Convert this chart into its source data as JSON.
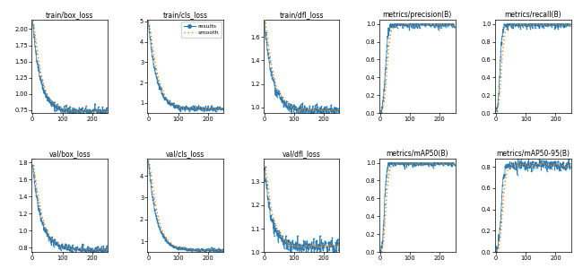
{
  "titles": [
    [
      "train/box_loss",
      "train/cls_loss",
      "train/dfl_loss",
      "metrics/precision(B)",
      "metrics/recall(B)"
    ],
    [
      "val/box_loss",
      "val/cls_loss",
      "val/dfl_loss",
      "metrics/mAP50(B)",
      "metrics/mAP50-95(B)"
    ]
  ],
  "n_epochs": 250,
  "line_color": "#1f77b4",
  "smooth_color": "#ff7f0e",
  "ylims": {
    "train/box_loss": [
      0.7,
      2.15
    ],
    "train/cls_loss": [
      0.5,
      5.1
    ],
    "train/dfl_loss": [
      0.95,
      1.75
    ],
    "metrics/precision(B)": [
      0.0,
      1.05
    ],
    "metrics/recall(B)": [
      0.0,
      1.05
    ],
    "val/box_loss": [
      0.75,
      1.85
    ],
    "val/cls_loss": [
      0.5,
      4.8
    ],
    "val/dfl_loss": [
      1.0,
      1.4
    ],
    "metrics/mAP50(B)": [
      0.0,
      1.05
    ],
    "metrics/mAP50-95(B)": [
      0.0,
      0.88
    ]
  },
  "yticks": {
    "train/box_loss": [
      0.75,
      1.0,
      1.25,
      1.5,
      1.75,
      2.0
    ],
    "train/cls_loss": [
      1,
      2,
      3,
      4,
      5
    ],
    "train/dfl_loss": [
      1.0,
      1.2,
      1.4,
      1.6
    ],
    "metrics/precision(B)": [
      0.0,
      0.2,
      0.4,
      0.6,
      0.8,
      1.0
    ],
    "metrics/recall(B)": [
      0.0,
      0.2,
      0.4,
      0.6,
      0.8,
      1.0
    ],
    "val/box_loss": [
      0.8,
      1.0,
      1.2,
      1.4,
      1.6,
      1.8
    ],
    "val/cls_loss": [
      1,
      2,
      3,
      4
    ],
    "val/dfl_loss": [
      1.0,
      1.1,
      1.2,
      1.3
    ],
    "metrics/mAP50(B)": [
      0.0,
      0.2,
      0.4,
      0.6,
      0.8,
      1.0
    ],
    "metrics/mAP50-95(B)": [
      0.0,
      0.2,
      0.4,
      0.6,
      0.8
    ]
  }
}
